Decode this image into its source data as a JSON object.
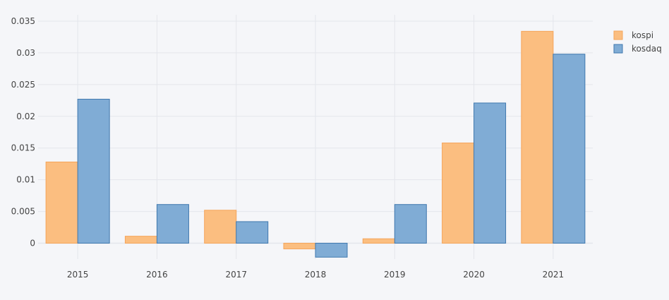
{
  "colors": {
    "background": "#f5f6f9",
    "grid": "#e4e6ec",
    "zero_line": "#e4e6ec",
    "tick_text": "#444444"
  },
  "chart_data": {
    "type": "bar",
    "title": "",
    "xlabel": "",
    "ylabel": "",
    "categories": [
      "2015",
      "2016",
      "2017",
      "2018",
      "2019",
      "2020",
      "2021"
    ],
    "series": [
      {
        "name": "kospi",
        "color": "#fbbe80",
        "edge_color": "#f5a55a",
        "values": [
          0.0128,
          0.0011,
          0.0052,
          -0.0009,
          0.0007,
          0.0158,
          0.0334
        ]
      },
      {
        "name": "kosdaq",
        "color": "#80acd5",
        "edge_color": "#3f78ae",
        "values": [
          0.0227,
          0.0061,
          0.0034,
          -0.0022,
          0.0061,
          0.0221,
          0.0298
        ]
      }
    ],
    "ylim": [
      -0.0025,
      0.036
    ],
    "yticks": [
      0,
      0.005,
      0.01,
      0.015,
      0.02,
      0.025,
      0.03,
      0.035
    ],
    "ytick_labels": [
      "0",
      "0.005",
      "0.01",
      "0.015",
      "0.02",
      "0.025",
      "0.03",
      "0.035"
    ],
    "grid": true,
    "legend_position": "top-right"
  }
}
